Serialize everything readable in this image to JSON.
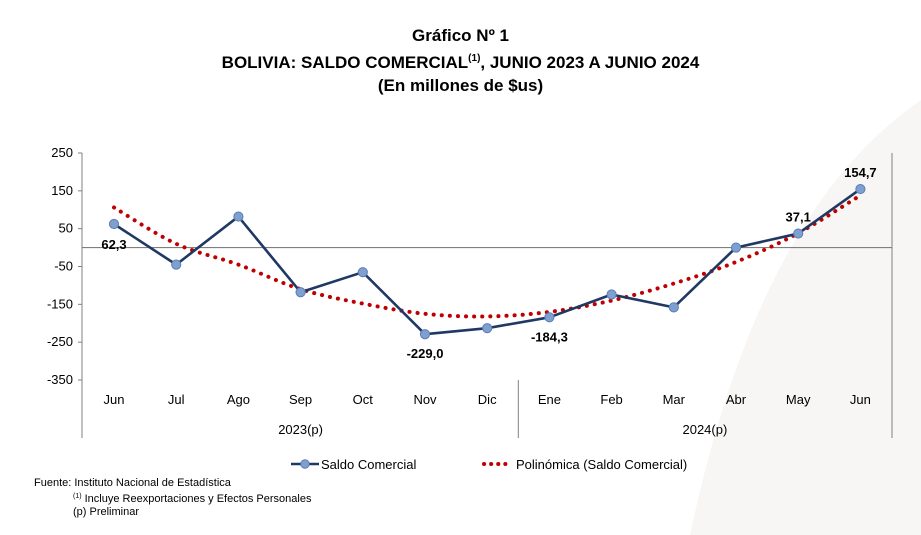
{
  "header": {
    "line1": "Gráfico Nº 1",
    "line2_pre": "BOLIVIA: SALDO COMERCIAL",
    "line2_sup": "(1)",
    "line2_post": ", JUNIO 2023 A JUNIO 2024",
    "line3": "(En millones de $us)"
  },
  "chart_data": {
    "type": "line",
    "title": "BOLIVIA: SALDO COMERCIAL (1), JUNIO 2023 A JUNIO 2024",
    "subtitle": "(En millones de $us)",
    "categories": [
      "Jun",
      "Jul",
      "Ago",
      "Sep",
      "Oct",
      "Nov",
      "Dic",
      "Ene",
      "Feb",
      "Mar",
      "Abr",
      "May",
      "Jun"
    ],
    "groups": [
      {
        "label": "2023(p)",
        "span": 7
      },
      {
        "label": "2024(p)",
        "span": 6
      }
    ],
    "yticks": [
      "250",
      "150",
      "50",
      "-50",
      "-150",
      "-250",
      "-350"
    ],
    "ylim": [
      -350,
      250
    ],
    "grid": false,
    "series": [
      {
        "name": "Saldo Comercial",
        "color": "#1f3864",
        "marker_color": "#7f9fce",
        "values": [
          62.3,
          -45,
          82,
          -118,
          -65,
          -229.0,
          -213,
          -184.3,
          -124,
          -158,
          0,
          37.1,
          154.7
        ]
      },
      {
        "name": "Polinómica (Saldo Comercial)",
        "color": "#c00000",
        "style": "dotted",
        "values": [
          106,
          10,
          -45,
          -110,
          -148,
          -175,
          -182,
          -170,
          -140,
          -95,
          -38,
          38,
          138
        ]
      }
    ],
    "data_labels": [
      {
        "index": 0,
        "text": "62,3"
      },
      {
        "index": 5,
        "text": "-229,0"
      },
      {
        "index": 7,
        "text": "-184,3"
      },
      {
        "index": 11,
        "text": "37,1"
      },
      {
        "index": 12,
        "text": "154,7"
      }
    ],
    "legend_position": "bottom"
  },
  "footer": {
    "source": "Fuente: Instituto Nacional de Estadística",
    "note1_sup": "(1)",
    "note1": " Incluye Reexportaciones y Efectos Personales",
    "note2": "(p) Preliminar"
  }
}
